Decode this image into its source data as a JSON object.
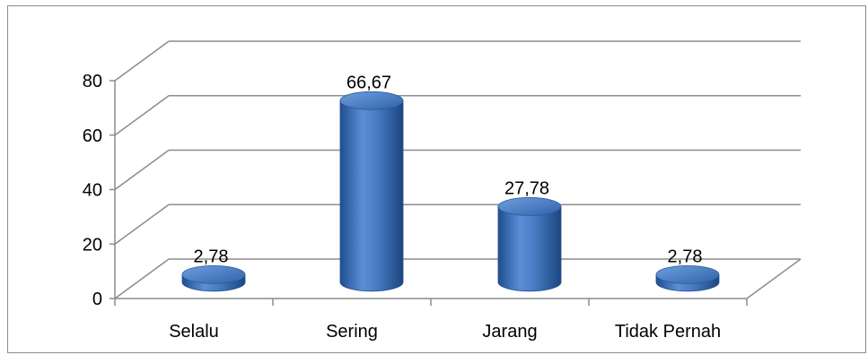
{
  "chart_data": {
    "type": "bar",
    "style": "3d-cylinder",
    "categories": [
      "Selalu",
      "Sering",
      "Jarang",
      "Tidak Pernah"
    ],
    "values": [
      2.78,
      66.67,
      27.78,
      2.78
    ],
    "value_labels": [
      "2,78",
      "66,67",
      "27,78",
      "2,78"
    ],
    "y_ticks": [
      "0",
      "20",
      "40",
      "60",
      "80"
    ],
    "ylim": [
      0,
      80
    ],
    "grid": true,
    "legend": "none",
    "bar_color": "#4f81bd",
    "title": "",
    "xlabel": "",
    "ylabel": ""
  }
}
